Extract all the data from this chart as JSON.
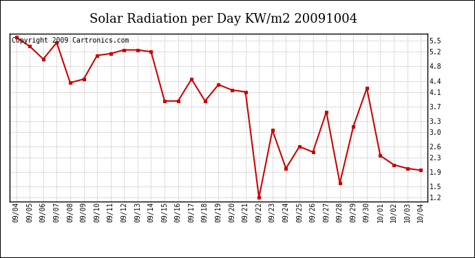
{
  "title": "Solar Radiation per Day KW/m2 20091004",
  "copyright_text": "Copyright 2009 Cartronics.com",
  "dates": [
    "09/04",
    "09/05",
    "09/06",
    "09/07",
    "09/08",
    "09/09",
    "09/10",
    "09/11",
    "09/12",
    "09/13",
    "09/14",
    "09/15",
    "09/16",
    "09/17",
    "09/18",
    "09/19",
    "09/20",
    "09/21",
    "09/22",
    "09/23",
    "09/24",
    "09/25",
    "09/26",
    "09/27",
    "09/28",
    "09/29",
    "09/30",
    "10/01",
    "10/02",
    "10/03",
    "10/04"
  ],
  "values": [
    5.6,
    5.35,
    5.0,
    5.45,
    4.35,
    4.45,
    5.1,
    5.15,
    5.25,
    5.25,
    5.2,
    3.85,
    3.85,
    4.45,
    3.85,
    4.3,
    4.15,
    4.1,
    1.2,
    3.05,
    2.0,
    2.6,
    2.45,
    3.55,
    1.6,
    3.15,
    4.2,
    2.35,
    2.1,
    2.0,
    1.95
  ],
  "line_color": "#cc0000",
  "marker_color": "#cc0000",
  "marker_style": "s",
  "marker_size": 3,
  "line_width": 1.5,
  "background_color": "#ffffff",
  "grid_color": "#bbbbbb",
  "yticks": [
    1.2,
    1.5,
    1.9,
    2.3,
    2.6,
    3.0,
    3.3,
    3.7,
    4.1,
    4.4,
    4.8,
    5.2,
    5.5
  ],
  "ylim": [
    1.1,
    5.7
  ],
  "title_fontsize": 13,
  "copyright_fontsize": 7,
  "tick_fontsize": 7,
  "border_color": "#000000"
}
